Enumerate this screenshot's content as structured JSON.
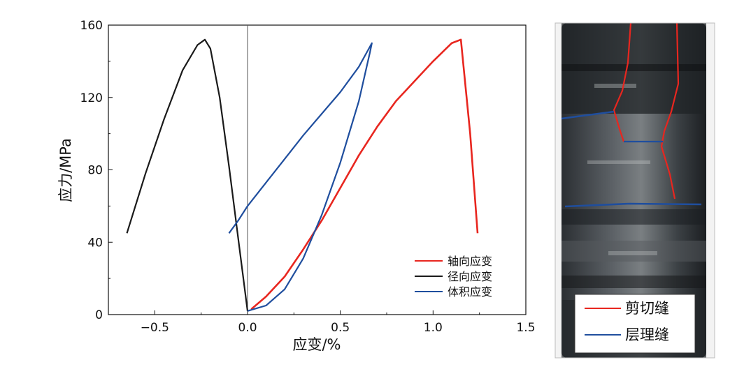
{
  "chart_data": {
    "type": "line",
    "title": "",
    "xlabel": "应变/%",
    "ylabel": "应力/MPa",
    "xlim": [
      -0.75,
      1.5
    ],
    "ylim": [
      0,
      160
    ],
    "xticks": [
      -0.5,
      0.0,
      0.5,
      1.0,
      1.5
    ],
    "xtick_labels": [
      "−0.5",
      "0.0",
      "0.5",
      "1.0",
      "1.5"
    ],
    "yticks": [
      0,
      40,
      80,
      120,
      160
    ],
    "ytick_labels": [
      "0",
      "40",
      "80",
      "120",
      "160"
    ],
    "zero_line_x": 0.0,
    "grid": false,
    "legend_position": "bottom-right",
    "series": [
      {
        "name": "轴向应变",
        "color": "#e8261f",
        "x": [
          0.02,
          0.1,
          0.2,
          0.3,
          0.4,
          0.5,
          0.6,
          0.7,
          0.8,
          0.9,
          1.0,
          1.05,
          1.1,
          1.15,
          1.2,
          1.24
        ],
        "y": [
          3,
          10,
          21,
          36,
          52,
          70,
          88,
          104,
          118,
          129,
          140,
          145,
          150,
          152,
          100,
          45
        ]
      },
      {
        "name": "径向应变",
        "color": "#1a1a1a",
        "x": [
          -0.65,
          -0.55,
          -0.45,
          -0.35,
          -0.27,
          -0.23,
          -0.2,
          -0.15,
          -0.1,
          -0.05,
          0.0
        ],
        "y": [
          45,
          78,
          108,
          135,
          149,
          152,
          147,
          120,
          82,
          42,
          2
        ]
      },
      {
        "name": "体积应变",
        "color": "#1f4e9e",
        "x": [
          -0.1,
          -0.05,
          0.0,
          0.1,
          0.2,
          0.3,
          0.4,
          0.5,
          0.6,
          0.67,
          0.66,
          0.6,
          0.5,
          0.4,
          0.3,
          0.2,
          0.1,
          0.0
        ],
        "y": [
          45,
          52,
          60,
          73,
          86,
          99,
          111,
          123,
          137,
          150,
          145,
          118,
          84,
          55,
          31,
          14,
          5,
          2
        ]
      }
    ]
  },
  "photo": {
    "legend": [
      {
        "label": "剪切缝",
        "color": "#e8261f"
      },
      {
        "label": "层理缝",
        "color": "#1f4e9e"
      }
    ]
  }
}
